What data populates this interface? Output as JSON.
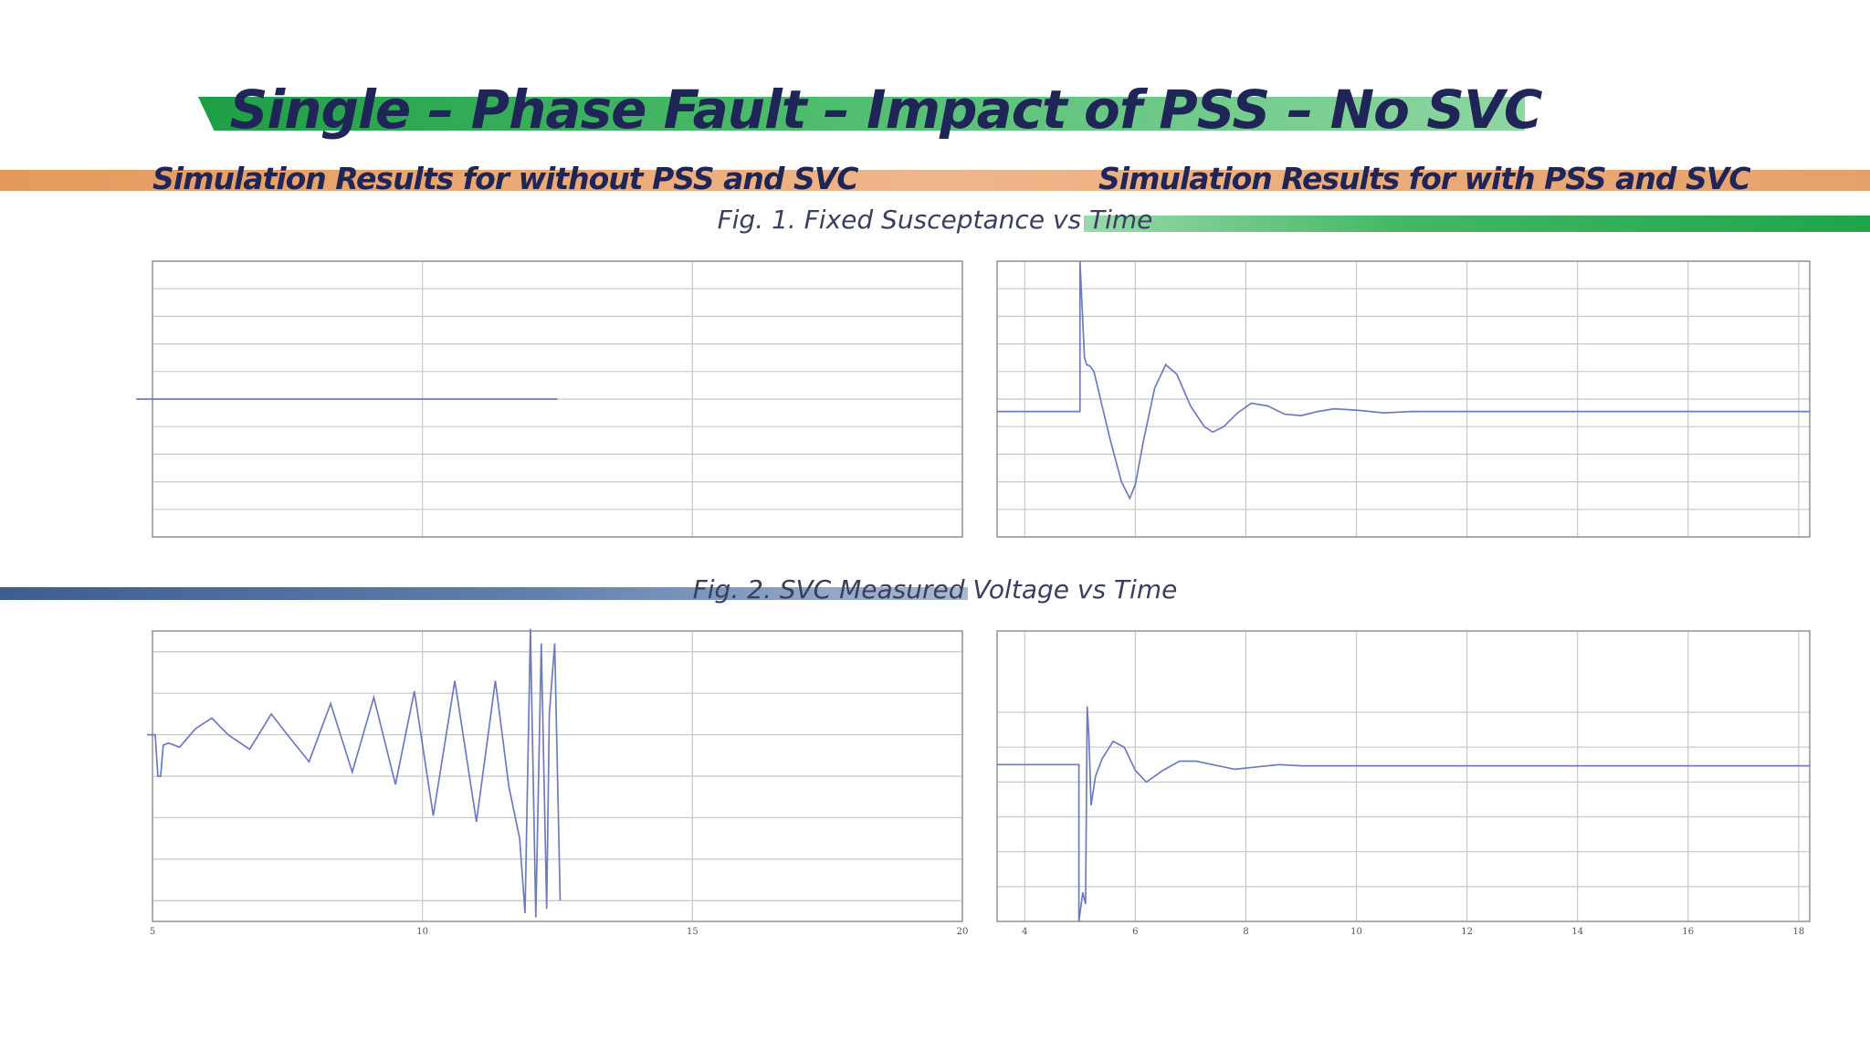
{
  "slide": {
    "title": "Single – Phase Fault – Impact of PSS – No SVC",
    "left_heading": "Simulation Results for without PSS and SVC",
    "right_heading": "Simulation Results for with PSS and SVC",
    "fig1_caption": "Fig. 1. Fixed Susceptance vs Time",
    "fig2_caption": "Fig. 2. SVC Measured Voltage vs Time"
  },
  "colors": {
    "title_text": "#1f2557",
    "band_green": "#1e9e45",
    "band_orange": "#e39a5c",
    "band_blue": "#3d5e91",
    "trace": "#6e7cbc"
  },
  "chart_data": [
    {
      "id": "plot-1",
      "type": "line",
      "title": "",
      "xlim": [
        5,
        20
      ],
      "ylim": [
        -1,
        1
      ],
      "xticks": [
        5,
        10,
        15,
        20
      ],
      "yticks": [
        -1,
        -0.8,
        -0.6,
        -0.4,
        -0.2,
        0,
        0.2,
        0.4,
        0.6,
        0.8,
        1
      ],
      "grid": true,
      "series": [
        {
          "x": [
            4.7,
            12.5
          ],
          "y": [
            0,
            0
          ]
        }
      ]
    },
    {
      "id": "plot-2",
      "type": "line",
      "title": "",
      "xlim": [
        3.5,
        18.2
      ],
      "ylim": [
        -1,
        1
      ],
      "xticks": [
        4,
        6,
        8,
        10,
        12,
        14,
        16,
        18
      ],
      "yticks": [
        -1,
        -0.8,
        -0.6,
        -0.4,
        -0.2,
        0,
        0.2,
        0.4,
        0.6,
        0.8,
        1
      ],
      "grid": true,
      "series": [
        {
          "x": [
            3.5,
            5.0,
            5.0,
            5.08,
            5.12,
            5.18,
            5.25,
            5.3,
            5.4,
            5.55,
            5.75,
            5.9,
            6.0,
            6.15,
            6.35,
            6.55,
            6.75,
            7.0,
            7.25,
            7.4,
            7.6,
            7.85,
            8.1,
            8.4,
            8.7,
            9.0,
            9.3,
            9.6,
            10.0,
            10.5,
            11.0,
            12.0,
            13.0,
            14.0,
            16.0,
            18.2
          ],
          "y": [
            -0.09,
            -0.09,
            1.0,
            0.3,
            0.25,
            0.24,
            0.2,
            0.12,
            -0.05,
            -0.3,
            -0.6,
            -0.72,
            -0.62,
            -0.3,
            0.08,
            0.25,
            0.18,
            -0.05,
            -0.2,
            -0.24,
            -0.2,
            -0.1,
            -0.03,
            -0.05,
            -0.11,
            -0.12,
            -0.09,
            -0.07,
            -0.08,
            -0.1,
            -0.09,
            -0.09,
            -0.09,
            -0.09,
            -0.09,
            -0.09
          ]
        }
      ]
    },
    {
      "id": "plot-3",
      "type": "line",
      "title": "",
      "xlim": [
        5,
        20
      ],
      "ylim": [
        0.1,
        1.5
      ],
      "xticks": [
        5,
        10,
        15,
        20
      ],
      "xtick_labels": [
        "5",
        "10",
        "15",
        "20"
      ],
      "yticks": [
        0.2,
        0.4,
        0.6,
        0.8,
        1.0,
        1.2,
        1.4
      ],
      "grid": true,
      "series": [
        {
          "x": [
            4.9,
            5.05,
            5.1,
            5.15,
            5.2,
            5.3,
            5.5,
            5.8,
            6.1,
            6.4,
            6.8,
            7.2,
            7.5,
            7.9,
            8.3,
            8.7,
            9.1,
            9.5,
            9.85,
            10.2,
            10.6,
            11.0,
            11.35,
            11.6,
            11.8,
            11.9,
            12.0,
            12.1,
            12.2,
            12.3,
            12.35,
            12.45,
            12.55
          ],
          "y": [
            1.0,
            1.0,
            0.8,
            0.8,
            0.95,
            0.96,
            0.94,
            1.03,
            1.08,
            1.0,
            0.93,
            1.1,
            1.0,
            0.87,
            1.15,
            0.82,
            1.18,
            0.76,
            1.21,
            0.61,
            1.26,
            0.58,
            1.26,
            0.75,
            0.5,
            0.14,
            1.51,
            0.12,
            1.44,
            0.16,
            1.1,
            1.44,
            0.2
          ]
        }
      ]
    },
    {
      "id": "plot-4",
      "type": "line",
      "title": "",
      "xlim": [
        3.5,
        18.2
      ],
      "ylim": [
        0.9,
        1.15
      ],
      "xticks": [
        4,
        6,
        8,
        10,
        12,
        14,
        16,
        18
      ],
      "xtick_labels": [
        "4",
        "6",
        "8",
        "10",
        "12",
        "14",
        "16",
        "18"
      ],
      "yticks": [
        0.93,
        0.96,
        0.99,
        1.02,
        1.05,
        1.08
      ],
      "grid": true,
      "series": [
        {
          "x": [
            3.5,
            4.98,
            4.98,
            5.05,
            5.1,
            5.13,
            5.16,
            5.2,
            5.28,
            5.4,
            5.6,
            5.8,
            6.0,
            6.2,
            6.5,
            6.8,
            7.1,
            7.4,
            7.8,
            8.2,
            8.6,
            9.0,
            9.5,
            10.0,
            11.0,
            12.0,
            14.0,
            16.0,
            18.2
          ],
          "y": [
            1.035,
            1.035,
            0.9,
            0.925,
            0.915,
            1.085,
            1.06,
            1.0,
            1.025,
            1.04,
            1.055,
            1.05,
            1.03,
            1.02,
            1.03,
            1.038,
            1.038,
            1.035,
            1.031,
            1.033,
            1.035,
            1.034,
            1.034,
            1.034,
            1.034,
            1.034,
            1.034,
            1.034,
            1.034
          ]
        }
      ]
    }
  ]
}
